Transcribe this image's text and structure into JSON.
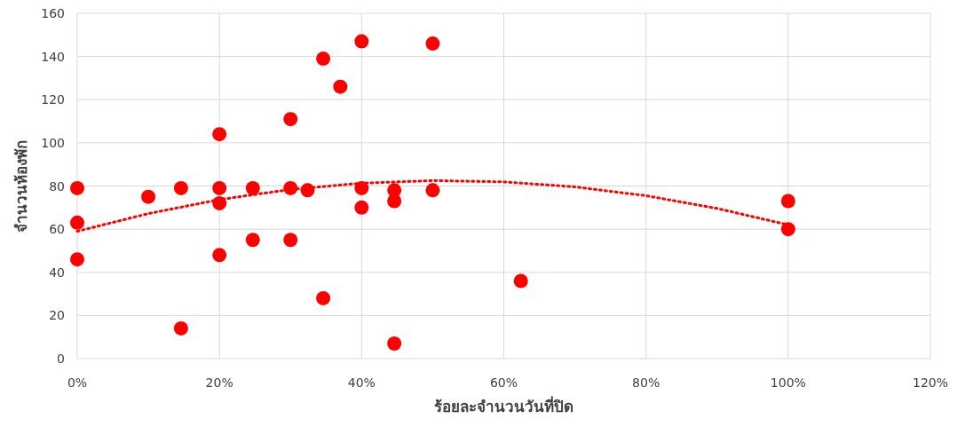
{
  "chart_data": {
    "type": "scatter",
    "xlabel": "ร้อยละจำนวนวันที่ปิด",
    "ylabel": "จำนวนห้องพัก",
    "xlim": [
      0,
      120
    ],
    "ylim": [
      0,
      160
    ],
    "xticks": [
      {
        "value": 0,
        "label": "0%"
      },
      {
        "value": 20,
        "label": "20%"
      },
      {
        "value": 40,
        "label": "40%"
      },
      {
        "value": 60,
        "label": "60%"
      },
      {
        "value": 80,
        "label": "80%"
      },
      {
        "value": 100,
        "label": "100%"
      },
      {
        "value": 120,
        "label": "120%"
      }
    ],
    "yticks": [
      0,
      20,
      40,
      60,
      80,
      100,
      120,
      140,
      160
    ],
    "grid": true,
    "series": [
      {
        "type": "scatter",
        "color": "#ff0000",
        "marker": "circle",
        "x": [
          0,
          0,
          0,
          10,
          14.6,
          14.6,
          20,
          20,
          20,
          20,
          24.7,
          24.7,
          30,
          30,
          30,
          32.4,
          34.6,
          34.6,
          37,
          40,
          40,
          40,
          44.6,
          44.6,
          44.6,
          50,
          50,
          62.4,
          100,
          100
        ],
        "values": [
          79,
          63,
          46,
          75,
          79,
          14,
          104,
          79,
          72,
          48,
          79,
          55,
          111,
          79,
          55,
          78,
          139,
          28,
          126,
          147,
          79,
          70,
          78,
          73,
          7,
          146,
          78,
          36,
          73,
          60
        ]
      },
      {
        "type": "line",
        "color": "#ff0000",
        "marker": "none",
        "line_style": "dotted",
        "x": [
          0,
          10,
          20,
          30,
          40,
          50,
          60,
          70,
          80,
          90,
          100
        ],
        "values": [
          59,
          67.2,
          73.7,
          78.4,
          81.3,
          82.5,
          81.9,
          79.6,
          75.5,
          69.6,
          62
        ]
      }
    ]
  }
}
